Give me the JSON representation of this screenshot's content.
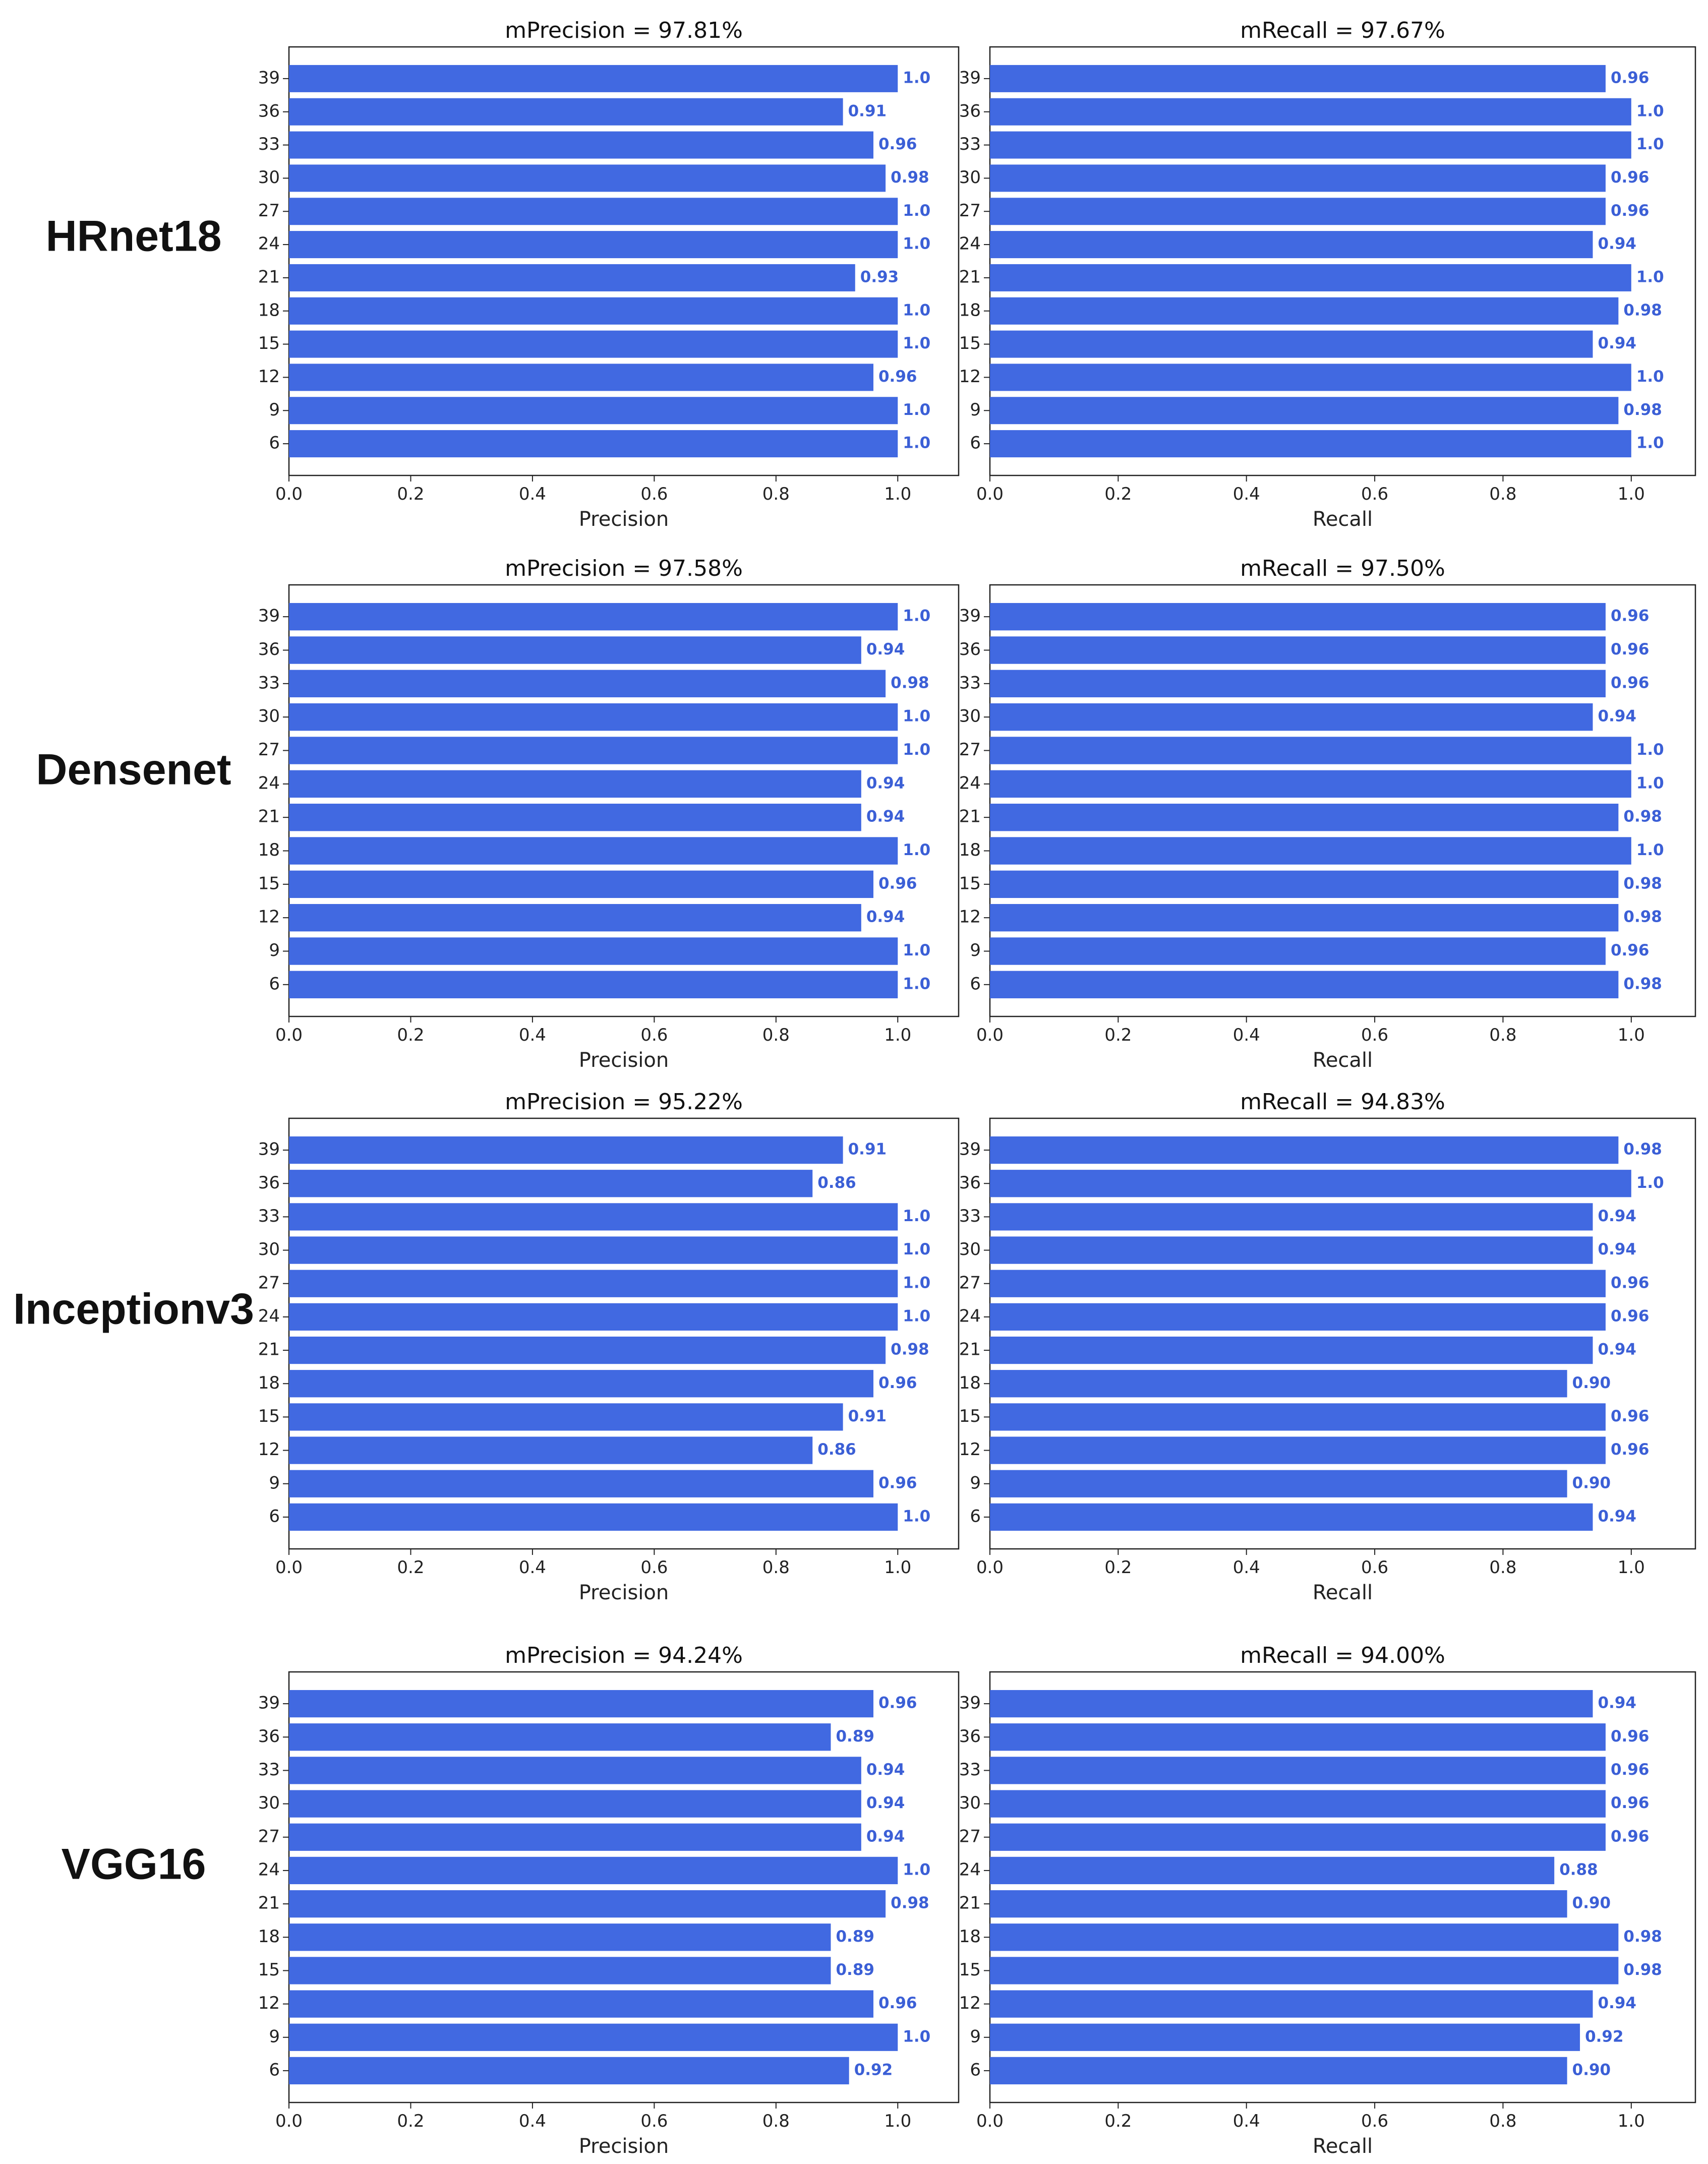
{
  "bar_color": "#4169e1",
  "label_color": "#3b5fd6",
  "models": [
    {
      "name": "HRnet18",
      "charts": [
        {
          "type": "bar-horizontal",
          "title": "mPrecision = 97.81%",
          "xlabel": "Precision",
          "xlim": [
            0,
            1.1
          ],
          "xticks": [
            "0.0",
            "0.2",
            "0.4",
            "0.6",
            "0.8",
            "1.0"
          ],
          "categories": [
            "39",
            "36",
            "33",
            "30",
            "27",
            "24",
            "21",
            "18",
            "15",
            "12",
            "9",
            "6"
          ],
          "values": [
            1.0,
            0.91,
            0.96,
            0.98,
            1.0,
            1.0,
            0.93,
            1.0,
            1.0,
            0.96,
            1.0,
            1.0
          ],
          "labels": [
            "1.0",
            "0.91",
            "0.96",
            "0.98",
            "1.0",
            "1.0",
            "0.93",
            "1.0",
            "1.0",
            "0.96",
            "1.0",
            "1.0"
          ]
        },
        {
          "type": "bar-horizontal",
          "title": "mRecall = 97.67%",
          "xlabel": "Recall",
          "xlim": [
            0,
            1.1
          ],
          "xticks": [
            "0.0",
            "0.2",
            "0.4",
            "0.6",
            "0.8",
            "1.0"
          ],
          "categories": [
            "39",
            "36",
            "33",
            "30",
            "27",
            "24",
            "21",
            "18",
            "15",
            "12",
            "9",
            "6"
          ],
          "values": [
            0.96,
            1.0,
            1.0,
            0.96,
            0.96,
            0.94,
            1.0,
            0.98,
            0.94,
            1.0,
            0.98,
            1.0
          ],
          "labels": [
            "0.96",
            "1.0",
            "1.0",
            "0.96",
            "0.96",
            "0.94",
            "1.0",
            "0.98",
            "0.94",
            "1.0",
            "0.98",
            "1.0"
          ]
        }
      ]
    },
    {
      "name": "Densenet",
      "charts": [
        {
          "type": "bar-horizontal",
          "title": "mPrecision = 97.58%",
          "xlabel": "Precision",
          "xlim": [
            0,
            1.1
          ],
          "xticks": [
            "0.0",
            "0.2",
            "0.4",
            "0.6",
            "0.8",
            "1.0"
          ],
          "categories": [
            "39",
            "36",
            "33",
            "30",
            "27",
            "24",
            "21",
            "18",
            "15",
            "12",
            "9",
            "6"
          ],
          "values": [
            1.0,
            0.94,
            0.98,
            1.0,
            1.0,
            0.94,
            0.94,
            1.0,
            0.96,
            0.94,
            1.0,
            1.0
          ],
          "labels": [
            "1.0",
            "0.94",
            "0.98",
            "1.0",
            "1.0",
            "0.94",
            "0.94",
            "1.0",
            "0.96",
            "0.94",
            "1.0",
            "1.0"
          ]
        },
        {
          "type": "bar-horizontal",
          "title": "mRecall = 97.50%",
          "xlabel": "Recall",
          "xlim": [
            0,
            1.1
          ],
          "xticks": [
            "0.0",
            "0.2",
            "0.4",
            "0.6",
            "0.8",
            "1.0"
          ],
          "categories": [
            "39",
            "36",
            "33",
            "30",
            "27",
            "24",
            "21",
            "18",
            "15",
            "12",
            "9",
            "6"
          ],
          "values": [
            0.96,
            0.96,
            0.96,
            0.94,
            1.0,
            1.0,
            0.98,
            1.0,
            0.98,
            0.98,
            0.96,
            0.98
          ],
          "labels": [
            "0.96",
            "0.96",
            "0.96",
            "0.94",
            "1.0",
            "1.0",
            "0.98",
            "1.0",
            "0.98",
            "0.98",
            "0.96",
            "0.98"
          ]
        }
      ]
    },
    {
      "name": "Inceptionv3",
      "charts": [
        {
          "type": "bar-horizontal",
          "title": "mPrecision = 95.22%",
          "xlabel": "Precision",
          "xlim": [
            0,
            1.1
          ],
          "xticks": [
            "0.0",
            "0.2",
            "0.4",
            "0.6",
            "0.8",
            "1.0"
          ],
          "categories": [
            "39",
            "36",
            "33",
            "30",
            "27",
            "24",
            "21",
            "18",
            "15",
            "12",
            "9",
            "6"
          ],
          "values": [
            0.91,
            0.86,
            1.0,
            1.0,
            1.0,
            1.0,
            0.98,
            0.96,
            0.91,
            0.86,
            0.96,
            1.0
          ],
          "labels": [
            "0.91",
            "0.86",
            "1.0",
            "1.0",
            "1.0",
            "1.0",
            "0.98",
            "0.96",
            "0.91",
            "0.86",
            "0.96",
            "1.0"
          ]
        },
        {
          "type": "bar-horizontal",
          "title": "mRecall = 94.83%",
          "xlabel": "Recall",
          "xlim": [
            0,
            1.1
          ],
          "xticks": [
            "0.0",
            "0.2",
            "0.4",
            "0.6",
            "0.8",
            "1.0"
          ],
          "categories": [
            "39",
            "36",
            "33",
            "30",
            "27",
            "24",
            "21",
            "18",
            "15",
            "12",
            "9",
            "6"
          ],
          "values": [
            0.98,
            1.0,
            0.94,
            0.94,
            0.96,
            0.96,
            0.94,
            0.9,
            0.96,
            0.96,
            0.9,
            0.94
          ],
          "labels": [
            "0.98",
            "1.0",
            "0.94",
            "0.94",
            "0.96",
            "0.96",
            "0.94",
            "0.90",
            "0.96",
            "0.96",
            "0.90",
            "0.94"
          ]
        }
      ]
    },
    {
      "name": "VGG16",
      "charts": [
        {
          "type": "bar-horizontal",
          "title": "mPrecision = 94.24%",
          "xlabel": "Precision",
          "xlim": [
            0,
            1.1
          ],
          "xticks": [
            "0.0",
            "0.2",
            "0.4",
            "0.6",
            "0.8",
            "1.0"
          ],
          "categories": [
            "39",
            "36",
            "33",
            "30",
            "27",
            "24",
            "21",
            "18",
            "15",
            "12",
            "9",
            "6"
          ],
          "values": [
            0.96,
            0.89,
            0.94,
            0.94,
            0.94,
            1.0,
            0.98,
            0.89,
            0.89,
            0.96,
            1.0,
            0.92
          ],
          "labels": [
            "0.96",
            "0.89",
            "0.94",
            "0.94",
            "0.94",
            "1.0",
            "0.98",
            "0.89",
            "0.89",
            "0.96",
            "1.0",
            "0.92"
          ]
        },
        {
          "type": "bar-horizontal",
          "title": "mRecall = 94.00%",
          "xlabel": "Recall",
          "xlim": [
            0,
            1.1
          ],
          "xticks": [
            "0.0",
            "0.2",
            "0.4",
            "0.6",
            "0.8",
            "1.0"
          ],
          "categories": [
            "39",
            "36",
            "33",
            "30",
            "27",
            "24",
            "21",
            "18",
            "15",
            "12",
            "9",
            "6"
          ],
          "values": [
            0.94,
            0.96,
            0.96,
            0.96,
            0.96,
            0.88,
            0.9,
            0.98,
            0.98,
            0.94,
            0.92,
            0.9
          ],
          "labels": [
            "0.94",
            "0.96",
            "0.96",
            "0.96",
            "0.96",
            "0.88",
            "0.90",
            "0.98",
            "0.98",
            "0.94",
            "0.92",
            "0.90"
          ]
        }
      ]
    }
  ]
}
